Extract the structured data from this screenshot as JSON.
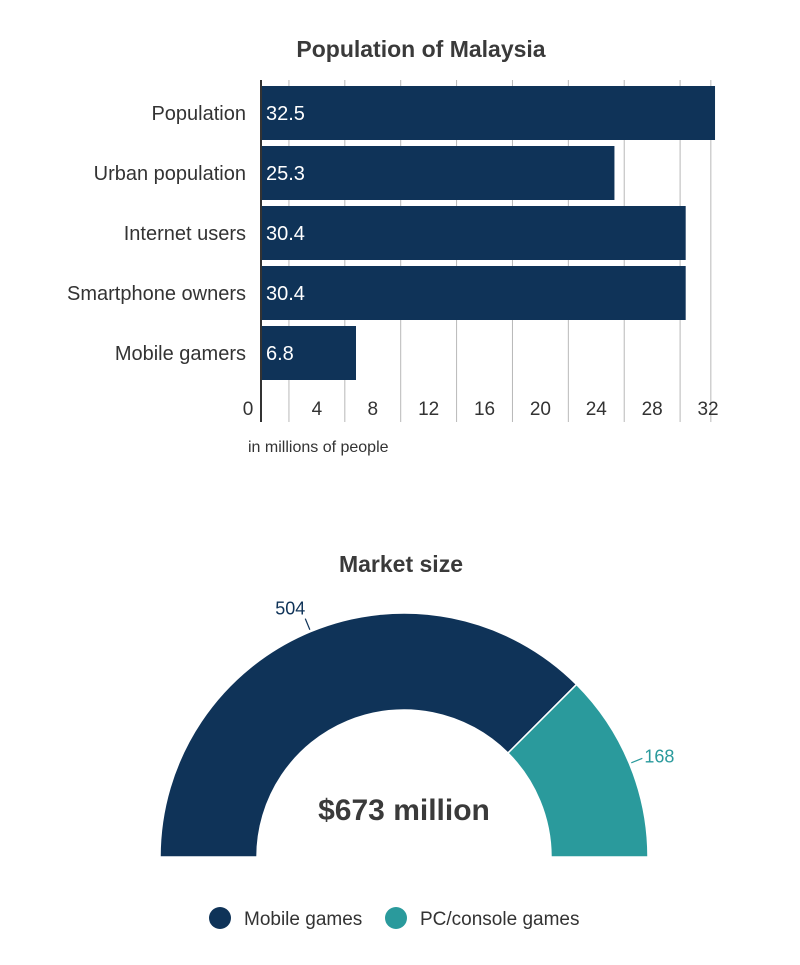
{
  "chart_data": [
    {
      "type": "bar",
      "orientation": "horizontal",
      "title": "Population of Malaysia",
      "categories": [
        "Population",
        "Urban population",
        "Internet users",
        "Smartphone owners",
        "Mobile gamers"
      ],
      "values": [
        32.5,
        25.3,
        30.4,
        30.4,
        6.8
      ],
      "data_labels": [
        "32.5",
        "25.3",
        "30.4",
        "30.4",
        "6.8"
      ],
      "xticks": [
        "0",
        "4",
        "8",
        "12",
        "16",
        "20",
        "24",
        "28",
        "32"
      ],
      "xlim": [
        0,
        32
      ],
      "xlabel": "in millions of people",
      "grid": true,
      "color": "#0f3358"
    },
    {
      "type": "pie",
      "style": "semi-donut",
      "title": "Market size",
      "center_label": "$673 million",
      "slices": [
        {
          "name": "Mobile games",
          "value": 504,
          "label": "504",
          "color": "#0f3358"
        },
        {
          "name": "PC/console games",
          "value": 168,
          "label": "168",
          "color": "#2a9a9c"
        }
      ],
      "legend_position": "bottom"
    }
  ]
}
